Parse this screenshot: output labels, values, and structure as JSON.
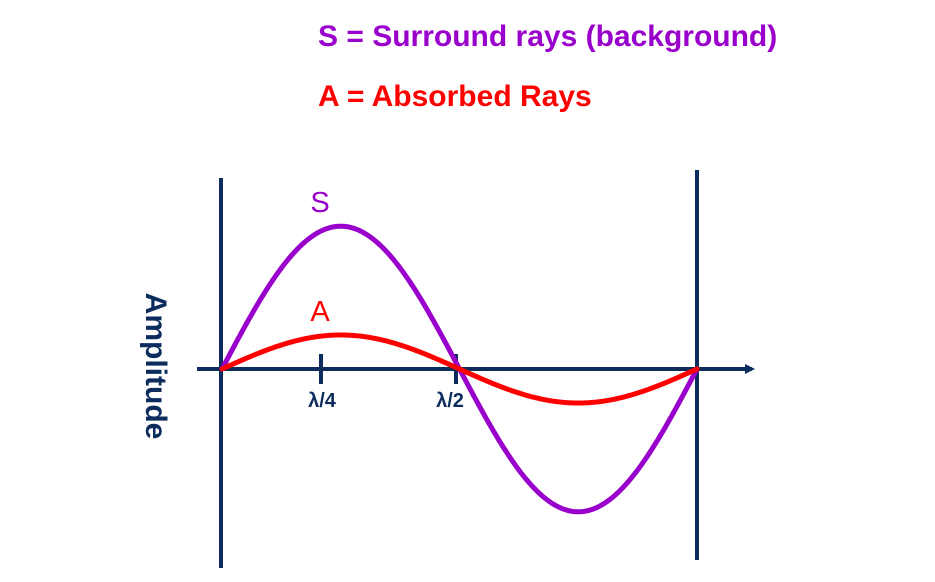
{
  "legend": {
    "surround": "S = Surround rays (background)",
    "absorbed": "A = Absorbed Rays"
  },
  "axis": {
    "ylabel": "Amplitude",
    "ticks": [
      "λ/4",
      "λ/2"
    ]
  },
  "curves": {
    "surround": {
      "label": "S",
      "amplitude": 4.2,
      "color": "#9900cc"
    },
    "absorbed": {
      "label": "A",
      "amplitude": 1.0,
      "color": "#ff0000"
    }
  },
  "colors": {
    "axis": "#0d2c5e"
  }
}
